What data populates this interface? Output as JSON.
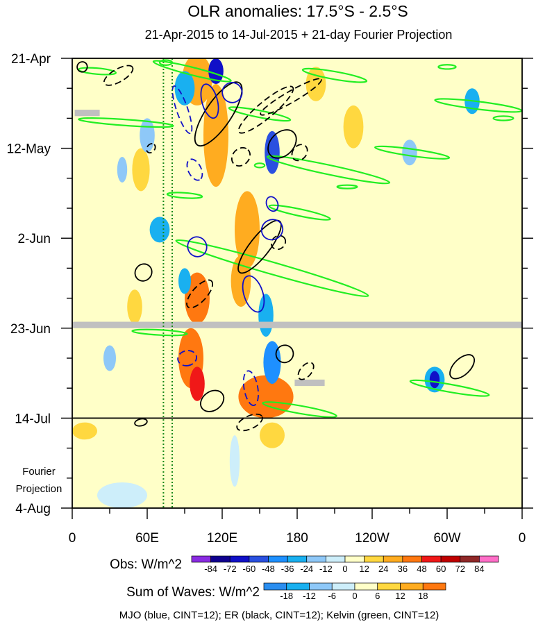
{
  "chart_data": {
    "type": "heatmap",
    "title": "OLR anomalies: 17.5°S - 2.5°S",
    "subtitle": "21-Apr-2015 to 14-Jul-2015 + 21-day Fourier Projection",
    "x_ticks": [
      "0",
      "60E",
      "120E",
      "180",
      "120W",
      "60W",
      "0"
    ],
    "x_tick_values": [
      0,
      60,
      120,
      180,
      240,
      300,
      360
    ],
    "y_ticks": [
      "21-Apr",
      "12-May",
      "2-Jun",
      "23-Jun",
      "14-Jul",
      "4-Aug"
    ],
    "y_tick_days": [
      0,
      21,
      42,
      63,
      84,
      105
    ],
    "xlim": [
      0,
      360
    ],
    "ylim_days": [
      0,
      105
    ],
    "obs_end_day": 84,
    "projection_label": [
      "Fourier",
      "Projection"
    ],
    "dotted_lon_lines": [
      73,
      80
    ],
    "missing_bands": [
      {
        "lon": [
          0,
          360
        ],
        "day": [
          61.5,
          63
        ]
      },
      {
        "lon": [
          2,
          22
        ],
        "day": [
          12,
          13.5
        ]
      },
      {
        "lon": [
          178,
          202
        ],
        "day": [
          75,
          76.5
        ]
      }
    ],
    "obs_legend": {
      "label": "Obs: W/m^2",
      "levels": [
        "-84",
        "-72",
        "-60",
        "-48",
        "-36",
        "-24",
        "-12",
        "0",
        "12",
        "24",
        "36",
        "48",
        "60",
        "72",
        "84"
      ],
      "colors": [
        "#8a2be2",
        "#10008f",
        "#1010c8",
        "#2a50e0",
        "#1e90ff",
        "#19b0f0",
        "#8ec8f8",
        "#cdeefa",
        "#ffffc8",
        "#ffd840",
        "#ffac20",
        "#ff7810",
        "#f01818",
        "#c00000",
        "#902828",
        "#ff6ec8"
      ]
    },
    "waves_legend": {
      "label": "Sum of Waves: W/m^2",
      "levels": [
        "-18",
        "-12",
        "-6",
        "0",
        "6",
        "12",
        "18"
      ],
      "colors": [
        "#2a8ef0",
        "#19b0f0",
        "#8ec8f8",
        "#cdeefa",
        "#ffffc8",
        "#ffd840",
        "#ffac20",
        "#ff7810"
      ]
    },
    "footer": "MJO (blue, CINT=12); ER (black, CINT=12); Kelvin (green, CINT=12)",
    "series": [
      {
        "name": "MJO",
        "color": "#1010c8",
        "cint": 12
      },
      {
        "name": "ER",
        "color": "#000000",
        "cint": 12
      },
      {
        "name": "Kelvin",
        "color": "#22ee22",
        "cint": 12
      }
    ],
    "anomaly_regions": [
      {
        "lon": 300,
        "day": 60,
        "rx": 60,
        "ry": 6,
        "value": 8
      },
      {
        "lon": 300,
        "day": 75,
        "rx": 55,
        "ry": 9,
        "value": 6
      },
      {
        "lon": 100,
        "day": 5,
        "rx": 12,
        "ry": 6,
        "value": 30
      },
      {
        "lon": 115,
        "day": 18,
        "rx": 10,
        "ry": 12,
        "value": 28
      },
      {
        "lon": 140,
        "day": 40,
        "rx": 10,
        "ry": 9,
        "value": 24
      },
      {
        "lon": 100,
        "day": 56,
        "rx": 10,
        "ry": 6,
        "value": 36
      },
      {
        "lon": 135,
        "day": 52,
        "rx": 8,
        "ry": 6,
        "value": 24
      },
      {
        "lon": 95,
        "day": 70,
        "rx": 10,
        "ry": 7,
        "value": 40
      },
      {
        "lon": 100,
        "day": 76,
        "rx": 6,
        "ry": 4,
        "value": 52
      },
      {
        "lon": 155,
        "day": 79,
        "rx": 22,
        "ry": 5,
        "value": 36
      },
      {
        "lon": 55,
        "day": 26,
        "rx": 7,
        "ry": 5,
        "value": 18
      },
      {
        "lon": 195,
        "day": 6,
        "rx": 8,
        "ry": 4,
        "value": 16
      },
      {
        "lon": 225,
        "day": 16,
        "rx": 8,
        "ry": 5,
        "value": 14
      },
      {
        "lon": 10,
        "day": 87,
        "rx": 10,
        "ry": 2,
        "value": 14
      },
      {
        "lon": 160,
        "day": 88,
        "rx": 10,
        "ry": 3,
        "value": 14
      },
      {
        "lon": 50,
        "day": 58,
        "rx": 6,
        "ry": 4,
        "value": 16
      },
      {
        "lon": 60,
        "day": 18,
        "rx": 6,
        "ry": 4,
        "value": -24
      },
      {
        "lon": 40,
        "day": 26,
        "rx": 4,
        "ry": 3,
        "value": -24
      },
      {
        "lon": 90,
        "day": 7,
        "rx": 8,
        "ry": 4,
        "value": -36
      },
      {
        "lon": 115,
        "day": 3,
        "rx": 6,
        "ry": 3,
        "value": -72
      },
      {
        "lon": 160,
        "day": 22,
        "rx": 6,
        "ry": 5,
        "value": -60
      },
      {
        "lon": 155,
        "day": 60,
        "rx": 6,
        "ry": 5,
        "value": -36
      },
      {
        "lon": 160,
        "day": 71,
        "rx": 7,
        "ry": 5,
        "value": -48
      },
      {
        "lon": 90,
        "day": 52,
        "rx": 5,
        "ry": 3,
        "value": -36
      },
      {
        "lon": 290,
        "day": 75,
        "rx": 8,
        "ry": 3,
        "value": -36
      },
      {
        "lon": 290,
        "day": 75,
        "rx": 4,
        "ry": 2,
        "value": -72
      },
      {
        "lon": 270,
        "day": 22,
        "rx": 6,
        "ry": 3,
        "value": -24
      },
      {
        "lon": 320,
        "day": 10,
        "rx": 6,
        "ry": 3,
        "value": -36
      },
      {
        "lon": 70,
        "day": 40,
        "rx": 8,
        "ry": 3,
        "value": -36
      },
      {
        "lon": 30,
        "day": 70,
        "rx": 5,
        "ry": 3,
        "value": -24
      },
      {
        "lon": 130,
        "day": 94,
        "rx": 4,
        "ry": 6,
        "value": -12
      },
      {
        "lon": 40,
        "day": 102,
        "rx": 20,
        "ry": 3,
        "value": -6
      }
    ],
    "mjo_contours": [
      {
        "lon": 128,
        "day": 8,
        "rx": 8,
        "ry": 2.3,
        "angle": 72,
        "dashed": false
      },
      {
        "lon": 110,
        "day": 10,
        "rx": 14,
        "ry": 1.8,
        "angle": 75,
        "dashed": false
      },
      {
        "lon": 160,
        "day": 40,
        "rx": 8,
        "ry": 2.5,
        "angle": 65,
        "dashed": false
      },
      {
        "lon": 100,
        "day": 44,
        "rx": 8,
        "ry": 2.2,
        "angle": 66,
        "dashed": false
      },
      {
        "lon": 145,
        "day": 55,
        "rx": 15,
        "ry": 2.2,
        "angle": 72,
        "dashed": false
      },
      {
        "lon": 88,
        "day": 12,
        "rx": 20,
        "ry": 1.3,
        "angle": 71,
        "dashed": true
      },
      {
        "lon": 98,
        "day": 26,
        "rx": 9,
        "ry": 1.5,
        "angle": 64,
        "dashed": true
      },
      {
        "lon": 92,
        "day": 70,
        "rx": 6,
        "ry": 2.2,
        "angle": 78,
        "dashed": true
      },
      {
        "lon": 143,
        "day": 77,
        "rx": 14,
        "ry": 1.6,
        "angle": 80,
        "dashed": true
      },
      {
        "lon": 160,
        "day": 34,
        "rx": 6,
        "ry": 1.3,
        "angle": 68,
        "dashed": false
      }
    ],
    "er_contours": [
      {
        "lon": 8,
        "day": 2,
        "rx": 4,
        "ry": 1.2,
        "angle": 38,
        "dashed": false
      },
      {
        "lon": 117,
        "day": 13,
        "rx": 30,
        "ry": 3.0,
        "angle": -56,
        "dashed": false
      },
      {
        "lon": 150,
        "day": 44,
        "rx": 26,
        "ry": 2.3,
        "angle": -52,
        "dashed": false
      },
      {
        "lon": 168,
        "day": 20,
        "rx": 13,
        "ry": 2.7,
        "angle": -45,
        "dashed": false
      },
      {
        "lon": 57,
        "day": 50,
        "rx": 7,
        "ry": 1.9,
        "angle": -50,
        "dashed": false
      },
      {
        "lon": 170,
        "day": 69,
        "rx": 7,
        "ry": 2.0,
        "angle": -55,
        "dashed": false
      },
      {
        "lon": 112,
        "day": 80,
        "rx": 10,
        "ry": 2.2,
        "angle": -35,
        "dashed": false
      },
      {
        "lon": 55,
        "day": 85,
        "rx": 5,
        "ry": 0.8,
        "angle": -12,
        "dashed": false
      },
      {
        "lon": 312,
        "day": 72,
        "rx": 12,
        "ry": 1.9,
        "angle": -44,
        "dashed": false
      },
      {
        "lon": 37,
        "day": 4,
        "rx": 13,
        "ry": 1.5,
        "angle": -30,
        "dashed": true
      },
      {
        "lon": 155,
        "day": 12,
        "rx": 28,
        "ry": 1.9,
        "angle": -40,
        "dashed": true
      },
      {
        "lon": 175,
        "day": 9,
        "rx": 28,
        "ry": 1.3,
        "angle": -30,
        "dashed": true
      },
      {
        "lon": 63,
        "day": 21,
        "rx": 4,
        "ry": 0.9,
        "angle": -50,
        "dashed": true
      },
      {
        "lon": 135,
        "day": 23,
        "rx": 8,
        "ry": 1.9,
        "angle": -45,
        "dashed": true
      },
      {
        "lon": 182,
        "day": 22,
        "rx": 7,
        "ry": 1.6,
        "angle": -50,
        "dashed": true
      },
      {
        "lon": 102,
        "day": 55,
        "rx": 14,
        "ry": 1.7,
        "angle": -48,
        "dashed": true
      },
      {
        "lon": 165,
        "day": 43,
        "rx": 6,
        "ry": 1.5,
        "angle": -40,
        "dashed": true
      },
      {
        "lon": 142,
        "day": 85,
        "rx": 11,
        "ry": 1.5,
        "angle": -25,
        "dashed": true
      },
      {
        "lon": 187,
        "day": 73,
        "rx": 8,
        "ry": 1.3,
        "angle": -50,
        "dashed": true
      }
    ],
    "kelvin_contours": [
      {
        "lon": 20,
        "day": 3,
        "rx": 15,
        "ry": 0.7,
        "angle": 5
      },
      {
        "lon": 75,
        "day": 1,
        "rx": 5,
        "ry": 0.6,
        "angle": 0
      },
      {
        "lon": 150,
        "day": 25,
        "rx": 4,
        "ry": 0.5,
        "angle": 0
      },
      {
        "lon": 96,
        "day": 3,
        "rx": 32,
        "ry": 0.9,
        "angle": 14
      },
      {
        "lon": 210,
        "day": 4,
        "rx": 26,
        "ry": 0.9,
        "angle": 10
      },
      {
        "lon": 150,
        "day": 13,
        "rx": 25,
        "ry": 0.8,
        "angle": 11
      },
      {
        "lon": 325,
        "day": 11,
        "rx": 35,
        "ry": 0.9,
        "angle": 7
      },
      {
        "lon": 43,
        "day": 15,
        "rx": 38,
        "ry": 0.7,
        "angle": 4
      },
      {
        "lon": 205,
        "day": 26,
        "rx": 50,
        "ry": 1.1,
        "angle": 12
      },
      {
        "lon": 272,
        "day": 22,
        "rx": 30,
        "ry": 0.8,
        "angle": 8
      },
      {
        "lon": 160,
        "day": 49,
        "rx": 80,
        "ry": 1.4,
        "angle": 16
      },
      {
        "lon": 182,
        "day": 36,
        "rx": 25,
        "ry": 0.8,
        "angle": 12
      },
      {
        "lon": 90,
        "day": 32,
        "rx": 14,
        "ry": 0.6,
        "angle": 4
      },
      {
        "lon": 70,
        "day": 64,
        "rx": 22,
        "ry": 0.6,
        "angle": 3
      },
      {
        "lon": 182,
        "day": 82,
        "rx": 30,
        "ry": 0.9,
        "angle": 10
      },
      {
        "lon": 302,
        "day": 77,
        "rx": 32,
        "ry": 0.9,
        "angle": 10
      },
      {
        "lon": 300,
        "day": 2,
        "rx": 7,
        "ry": 0.5,
        "angle": 0
      },
      {
        "lon": 345,
        "day": 14,
        "rx": 8,
        "ry": 0.5,
        "angle": 0
      },
      {
        "lon": 220,
        "day": 30,
        "rx": 8,
        "ry": 0.4,
        "angle": 0
      }
    ]
  }
}
